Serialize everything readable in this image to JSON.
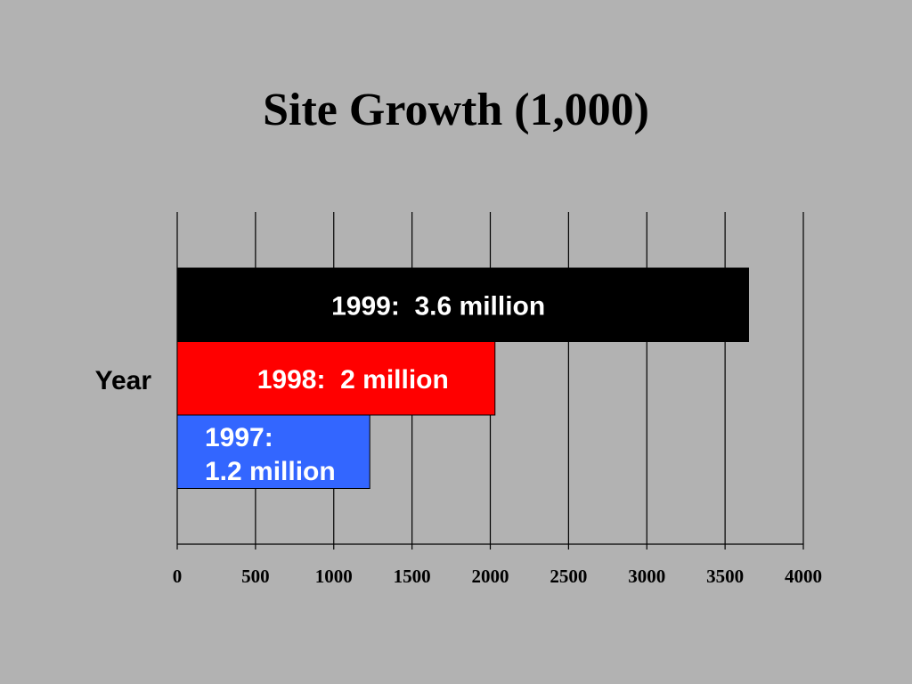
{
  "slide": {
    "background": "#b2b2b2"
  },
  "chart_data": {
    "type": "bar",
    "orientation": "horizontal",
    "title": "Site Growth (1,000)",
    "xlabel": "",
    "ylabel": "Year",
    "xlim": [
      0,
      4000
    ],
    "xticks": [
      0,
      500,
      1000,
      1500,
      2000,
      2500,
      3000,
      3500,
      4000
    ],
    "grid": "vertical",
    "legend": "none",
    "bars": [
      {
        "category": "1999",
        "value": 3650,
        "label": [
          "1999:  3.6 million"
        ],
        "color": "#000000",
        "text_color": "#ffffff"
      },
      {
        "category": "1998",
        "value": 2030,
        "label": [
          "1998:  2 million"
        ],
        "color": "#ff0000",
        "text_color": "#ffffff"
      },
      {
        "category": "1997",
        "value": 1230,
        "label": [
          "1997:",
          "1.2 million"
        ],
        "color": "#3366ff",
        "text_color": "#ffffff"
      }
    ]
  }
}
